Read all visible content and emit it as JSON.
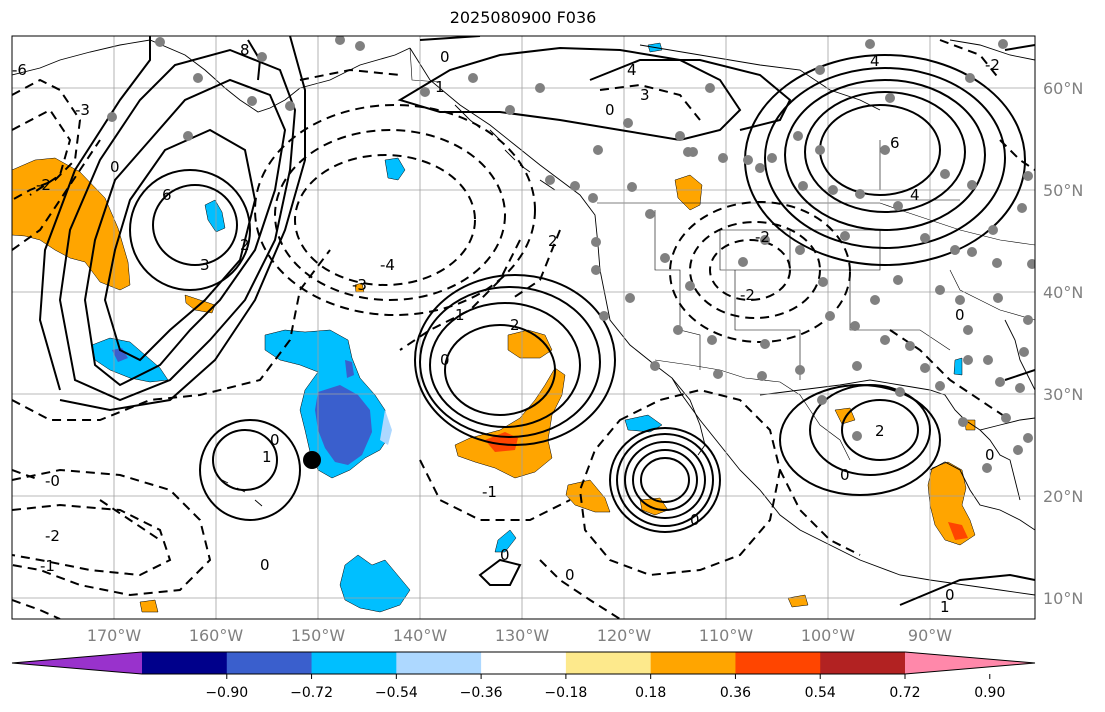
{
  "title": "2025080900 F036",
  "map": {
    "projection": "platecarree",
    "extent": {
      "lon": [
        -180,
        -80
      ],
      "lat": [
        8,
        65
      ]
    },
    "grid": true,
    "lat_labels": [
      "60°N",
      "50°N",
      "40°N",
      "30°N",
      "20°N",
      "10°N"
    ],
    "lat_values": [
      60,
      50,
      40,
      30,
      20,
      10
    ],
    "lon_labels": [
      "170°W",
      "160°W",
      "150°W",
      "140°W",
      "130°W",
      "120°W",
      "110°W",
      "100°W",
      "90°W"
    ],
    "lon_values": [
      -170,
      -160,
      -150,
      -140,
      -130,
      -120,
      -110,
      -100,
      -90
    ],
    "label_color": "#808080",
    "marker": {
      "lon": -150.2,
      "lat": 23.5,
      "color": "#000000"
    },
    "station_color": "#808080",
    "contour_labels": [
      "-0",
      "0",
      "1",
      "2",
      "3",
      "4",
      "6",
      "-1",
      "-2",
      "-3",
      "-4",
      "8",
      "-6"
    ]
  },
  "colorbar": {
    "ticks": [
      "−0.90",
      "−0.72",
      "−0.54",
      "−0.36",
      "−0.18",
      "0.18",
      "0.36",
      "0.54",
      "0.72",
      "0.90"
    ],
    "colors": [
      "#9932cc",
      "#00008b",
      "#3a5fcd",
      "#00bfff",
      "#add8ff",
      "#ffffff",
      "#fde98c",
      "#ffa500",
      "#ff4500",
      "#b22222",
      "#ff88aa"
    ],
    "extend": "both"
  }
}
